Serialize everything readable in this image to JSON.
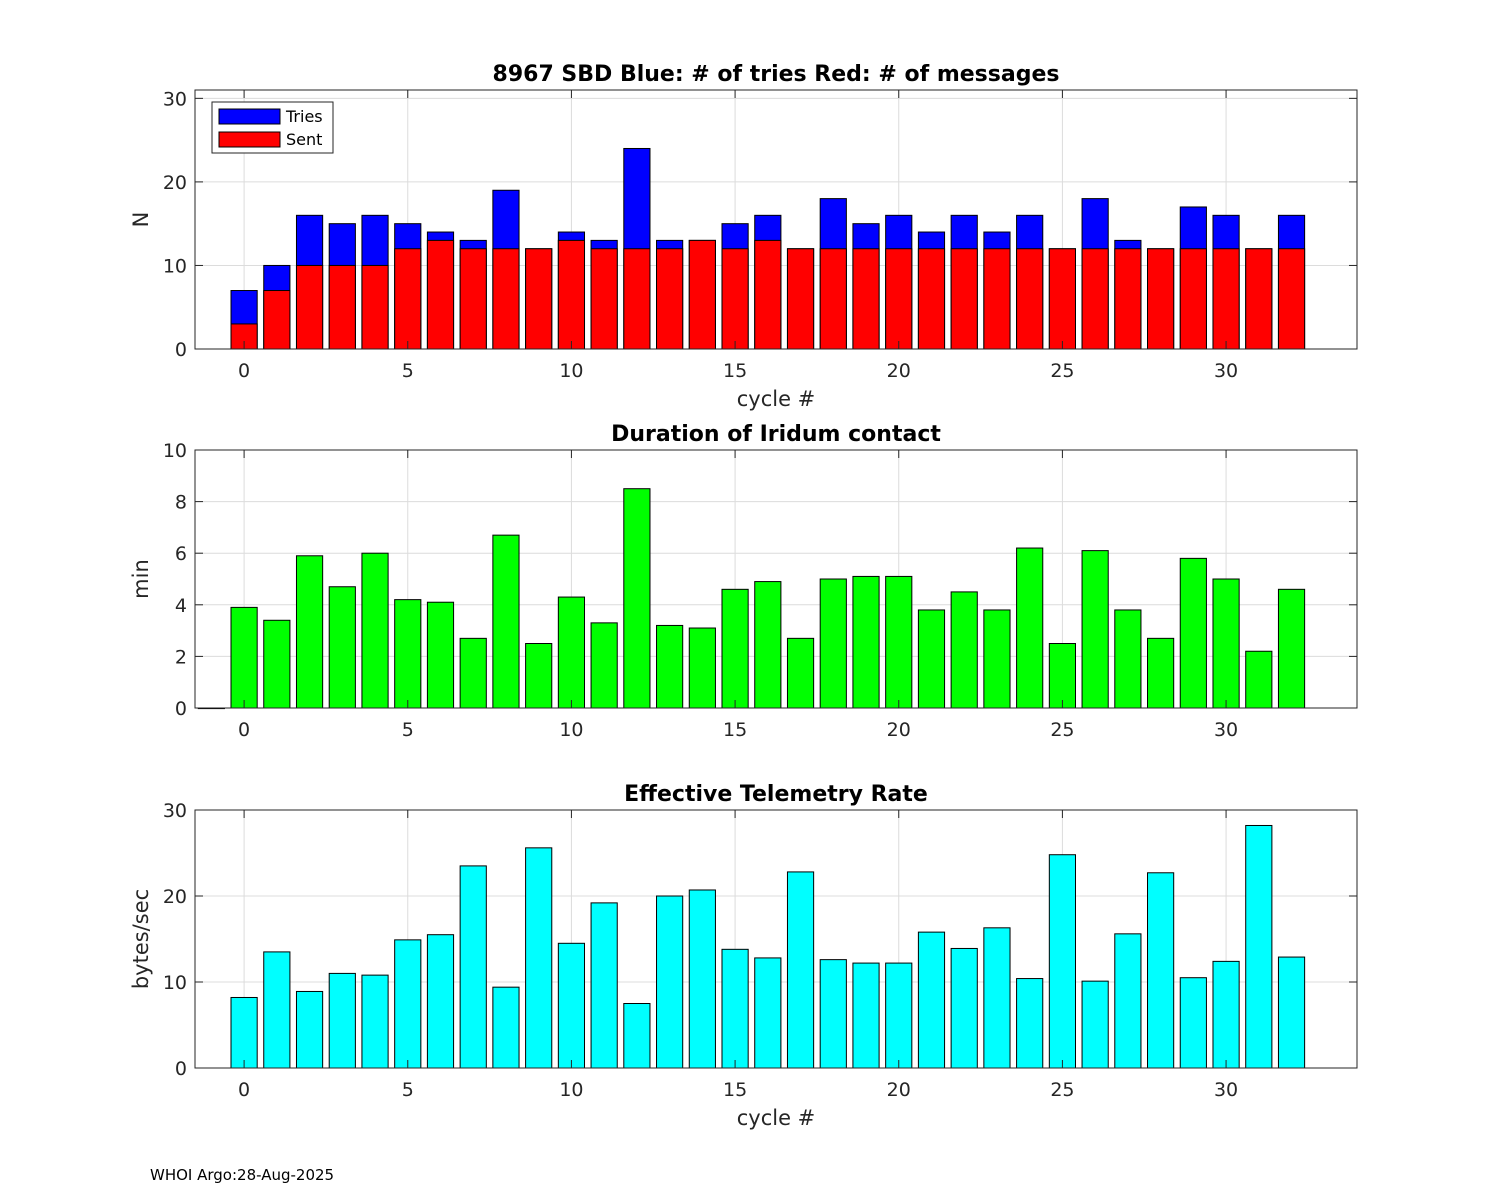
{
  "chart_data": [
    {
      "type": "bar",
      "stacked": "overlay",
      "title": "8967 SBD  Blue: # of tries   Red: # of messages",
      "xlabel": "cycle #",
      "ylabel": "N",
      "xlim": [
        -1.5,
        34
      ],
      "ylim": [
        0,
        31
      ],
      "xticks": [
        0,
        5,
        10,
        15,
        20,
        25,
        30
      ],
      "yticks": [
        0,
        10,
        20,
        30
      ],
      "grid": true,
      "legend_position": "top-left",
      "x": [
        0,
        1,
        2,
        3,
        4,
        5,
        6,
        7,
        8,
        9,
        10,
        11,
        12,
        13,
        14,
        15,
        16,
        17,
        18,
        19,
        20,
        21,
        22,
        23,
        24,
        25,
        26,
        27,
        28,
        29,
        30,
        31,
        32
      ],
      "series": [
        {
          "name": "Tries",
          "color": "#0000ff",
          "values": [
            7,
            10,
            16,
            15,
            16,
            15,
            14,
            13,
            19,
            12,
            14,
            13,
            24,
            13,
            13,
            15,
            16,
            12,
            18,
            15,
            16,
            14,
            16,
            14,
            16,
            12,
            18,
            13,
            12,
            17,
            16,
            12,
            16
          ]
        },
        {
          "name": "Sent",
          "color": "#ff0000",
          "values": [
            3,
            7,
            10,
            10,
            10,
            12,
            13,
            12,
            12,
            12,
            13,
            12,
            12,
            12,
            13,
            12,
            13,
            12,
            12,
            12,
            12,
            12,
            12,
            12,
            12,
            12,
            12,
            12,
            12,
            12,
            12,
            12,
            12
          ]
        }
      ]
    },
    {
      "type": "bar",
      "title": "Duration of Iridum contact",
      "xlabel": "",
      "ylabel": "min",
      "xlim": [
        -1.5,
        34
      ],
      "ylim": [
        0,
        10
      ],
      "xticks": [
        0,
        5,
        10,
        15,
        20,
        25,
        30
      ],
      "yticks": [
        0,
        2,
        4,
        6,
        8,
        10
      ],
      "grid": true,
      "x": [
        -1,
        0,
        1,
        2,
        3,
        4,
        5,
        6,
        7,
        8,
        9,
        10,
        11,
        12,
        13,
        14,
        15,
        16,
        17,
        18,
        19,
        20,
        21,
        22,
        23,
        24,
        25,
        26,
        27,
        28,
        29,
        30,
        31,
        32
      ],
      "series": [
        {
          "name": "Duration",
          "color": "#00ff00",
          "values": [
            0,
            3.9,
            3.4,
            5.9,
            4.7,
            6.0,
            4.2,
            4.1,
            2.7,
            6.7,
            2.5,
            4.3,
            3.3,
            8.5,
            3.2,
            3.1,
            4.6,
            4.9,
            2.7,
            5.0,
            5.1,
            5.1,
            3.8,
            4.5,
            3.8,
            6.2,
            2.5,
            6.1,
            3.8,
            2.7,
            5.8,
            5.0,
            2.2,
            4.6
          ]
        }
      ]
    },
    {
      "type": "bar",
      "title": "Effective Telemetry Rate",
      "xlabel": "cycle #",
      "ylabel": "bytes/sec",
      "xlim": [
        -1.5,
        34
      ],
      "ylim": [
        0,
        30
      ],
      "xticks": [
        0,
        5,
        10,
        15,
        20,
        25,
        30
      ],
      "yticks": [
        0,
        10,
        20,
        30
      ],
      "grid": true,
      "x": [
        0,
        1,
        2,
        3,
        4,
        5,
        6,
        7,
        8,
        9,
        10,
        11,
        12,
        13,
        14,
        15,
        16,
        17,
        18,
        19,
        20,
        21,
        22,
        23,
        24,
        25,
        26,
        27,
        28,
        29,
        30,
        31,
        32
      ],
      "series": [
        {
          "name": "Rate",
          "color": "#00ffff",
          "values": [
            8.2,
            13.5,
            8.9,
            11.0,
            10.8,
            14.9,
            15.5,
            23.5,
            9.4,
            25.6,
            14.5,
            19.2,
            7.5,
            20.0,
            20.7,
            13.8,
            12.8,
            22.8,
            12.6,
            12.2,
            12.2,
            15.8,
            13.9,
            16.3,
            10.4,
            24.8,
            10.1,
            15.6,
            22.7,
            10.5,
            12.4,
            28.2,
            12.9
          ]
        }
      ]
    }
  ],
  "footer": "WHOI Argo:28-Aug-2025"
}
